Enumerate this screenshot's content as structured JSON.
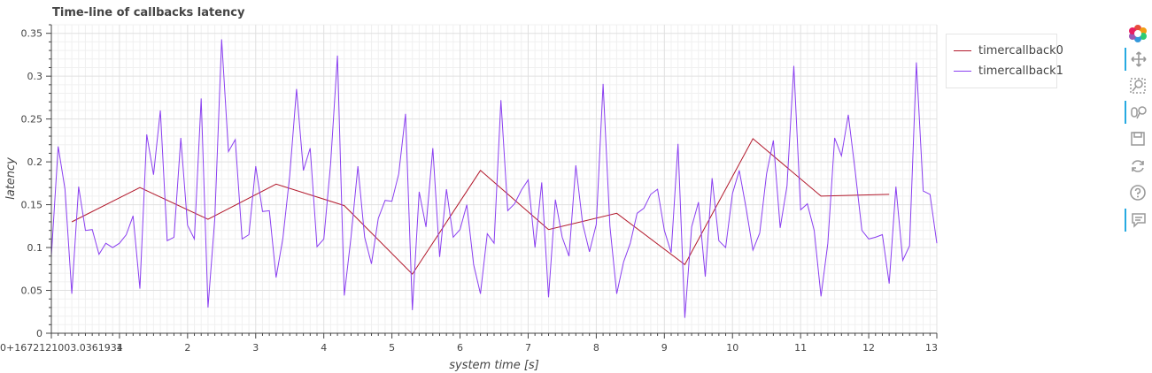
{
  "chart_data": {
    "type": "line",
    "title": "Time-line of callbacks latency",
    "xlabel": "system time [s]",
    "ylabel": "latency",
    "xlim": [
      0,
      13
    ],
    "ylim": [
      0,
      0.36
    ],
    "x_origin_label": "0+1672121003.0361934",
    "x_ticks": [
      1,
      2,
      3,
      4,
      5,
      6,
      7,
      8,
      9,
      10,
      11,
      12,
      13
    ],
    "y_ticks": [
      0,
      0.05,
      0.1,
      0.15,
      0.2,
      0.25,
      0.3,
      0.35
    ],
    "y_tick_labels": [
      "0",
      "0.05",
      "0.1",
      "0.15",
      "0.2",
      "0.25",
      "0.3",
      "0.35"
    ],
    "grid": true,
    "legend_position": "top-right",
    "series": [
      {
        "name": "timercallback0",
        "color": "#b2182b",
        "x": [
          0.3,
          1.3,
          2.3,
          3.3,
          4.3,
          5.3,
          6.3,
          7.3,
          8.3,
          9.3,
          10.3,
          11.3,
          12.3
        ],
        "y": [
          0.13,
          0.17,
          0.133,
          0.174,
          0.149,
          0.069,
          0.19,
          0.121,
          0.14,
          0.08,
          0.227,
          0.16,
          0.162
        ]
      },
      {
        "name": "timercallback1",
        "color": "#8a3ff0",
        "x": [
          0.0,
          0.1,
          0.2,
          0.3,
          0.4,
          0.5,
          0.6,
          0.7,
          0.8,
          0.9,
          1.0,
          1.1,
          1.2,
          1.3,
          1.4,
          1.5,
          1.6,
          1.7,
          1.8,
          1.9,
          2.0,
          2.1,
          2.2,
          2.3,
          2.4,
          2.5,
          2.6,
          2.7,
          2.8,
          2.9,
          3.0,
          3.1,
          3.2,
          3.3,
          3.4,
          3.5,
          3.6,
          3.7,
          3.8,
          3.9,
          4.0,
          4.1,
          4.2,
          4.3,
          4.4,
          4.5,
          4.6,
          4.7,
          4.8,
          4.9,
          5.0,
          5.1,
          5.2,
          5.3,
          5.4,
          5.5,
          5.6,
          5.7,
          5.8,
          5.9,
          6.0,
          6.1,
          6.2,
          6.3,
          6.4,
          6.5,
          6.6,
          6.7,
          6.8,
          6.9,
          7.0,
          7.1,
          7.2,
          7.3,
          7.4,
          7.5,
          7.6,
          7.7,
          7.8,
          7.9,
          8.0,
          8.1,
          8.2,
          8.3,
          8.4,
          8.5,
          8.6,
          8.7,
          8.8,
          8.9,
          9.0,
          9.1,
          9.2,
          9.3,
          9.4,
          9.5,
          9.6,
          9.7,
          9.8,
          9.9,
          10.0,
          10.1,
          10.2,
          10.3,
          10.4,
          10.5,
          10.6,
          10.7,
          10.8,
          10.9,
          11.0,
          11.1,
          11.2,
          11.3,
          11.4,
          11.5,
          11.6,
          11.7,
          11.8,
          11.9,
          12.0,
          12.1,
          12.2,
          12.3,
          12.4,
          12.5,
          12.6,
          12.7,
          12.8,
          12.9,
          13.0
        ],
        "y": [
          0.09,
          0.218,
          0.168,
          0.046,
          0.171,
          0.12,
          0.121,
          0.092,
          0.105,
          0.1,
          0.105,
          0.115,
          0.137,
          0.052,
          0.232,
          0.185,
          0.26,
          0.108,
          0.112,
          0.228,
          0.126,
          0.11,
          0.274,
          0.03,
          0.134,
          0.343,
          0.212,
          0.226,
          0.11,
          0.115,
          0.195,
          0.142,
          0.143,
          0.065,
          0.111,
          0.184,
          0.285,
          0.19,
          0.216,
          0.101,
          0.11,
          0.198,
          0.324,
          0.044,
          0.113,
          0.195,
          0.112,
          0.081,
          0.134,
          0.155,
          0.154,
          0.186,
          0.256,
          0.027,
          0.165,
          0.124,
          0.216,
          0.089,
          0.168,
          0.112,
          0.121,
          0.15,
          0.08,
          0.046,
          0.116,
          0.105,
          0.272,
          0.143,
          0.151,
          0.167,
          0.179,
          0.1,
          0.176,
          0.042,
          0.156,
          0.112,
          0.09,
          0.196,
          0.128,
          0.095,
          0.127,
          0.291,
          0.125,
          0.046,
          0.083,
          0.105,
          0.14,
          0.146,
          0.162,
          0.168,
          0.12,
          0.094,
          0.221,
          0.018,
          0.124,
          0.153,
          0.066,
          0.181,
          0.108,
          0.1,
          0.163,
          0.19,
          0.146,
          0.097,
          0.117,
          0.186,
          0.225,
          0.123,
          0.172,
          0.312,
          0.144,
          0.151,
          0.12,
          0.043,
          0.105,
          0.228,
          0.207,
          0.255,
          0.19,
          0.12,
          0.11,
          0.112,
          0.115,
          0.058,
          0.171,
          0.085,
          0.102,
          0.316,
          0.166,
          0.162,
          0.105
        ]
      }
    ]
  },
  "toolbar": {
    "tools": [
      {
        "icon": "bokeh-logo-icon",
        "active": false
      },
      {
        "icon": "pan-icon",
        "active": true
      },
      {
        "icon": "box-zoom-icon",
        "active": false
      },
      {
        "icon": "wheel-zoom-icon",
        "active": true
      },
      {
        "icon": "save-icon",
        "active": false
      },
      {
        "icon": "reset-icon",
        "active": false
      },
      {
        "icon": "help-icon",
        "active": false
      },
      {
        "icon": "hover-icon",
        "active": true
      }
    ]
  }
}
